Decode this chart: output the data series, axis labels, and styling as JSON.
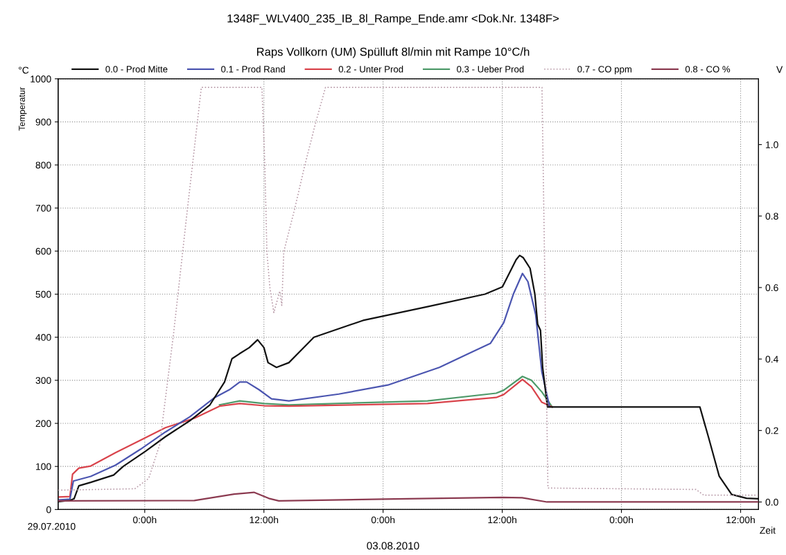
{
  "chart_data": {
    "type": "line",
    "title": "1348F_WLV400_235_IB_8l_Rampe_Ende.amr <Dok.Nr. 1348F>",
    "subtitle": "Raps Vollkorn (UM) Spülluft 8l/min mit Rampe 10°C/h",
    "ylabel": "Temperatur",
    "y2label": "V",
    "xlabel": "Zeit",
    "annotations": [
      "°C",
      "29.07.2010",
      "03.08.2010"
    ],
    "xlim": [
      "2010-07-29T15:17",
      "2010-08-01T13:48"
    ],
    "xticks": [
      {
        "value": "2010-07-30T00:00",
        "label": "0:00h"
      },
      {
        "value": "2010-07-30T12:00",
        "label": "12:00h"
      },
      {
        "value": "2010-07-31T00:00",
        "label": "0:00h"
      },
      {
        "value": "2010-07-31T12:00",
        "label": "12:00h"
      },
      {
        "value": "2010-08-01T00:00",
        "label": "0:00h"
      },
      {
        "value": "2010-08-01T12:00",
        "label": "12:00h"
      }
    ],
    "ylim": [
      0,
      1000
    ],
    "yticks": [
      0,
      100,
      200,
      300,
      400,
      500,
      600,
      700,
      800,
      900,
      1000
    ],
    "y2lim": [
      -0.021,
      1.184
    ],
    "y2ticks": [
      {
        "value": 0,
        "label": "0.0"
      },
      {
        "value": 0.2,
        "label": "0.2"
      },
      {
        "value": 0.4,
        "label": "0.4"
      },
      {
        "value": 0.6,
        "label": "0.6"
      },
      {
        "value": 0.8,
        "label": "0.8"
      },
      {
        "value": 1.0,
        "label": "1.0"
      }
    ],
    "grid": true,
    "legend": "top",
    "line_style": "solid",
    "marker": "none",
    "series": [
      {
        "name": "0.0 - Prod Mitte",
        "color": "#111111",
        "x": [
          "2010-07-29T15:17",
          "2010-07-29T16:28",
          "2010-07-29T16:53",
          "2010-07-29T17:22",
          "2010-07-29T18:34",
          "2010-07-29T20:52",
          "2010-07-29T21:50",
          "2010-07-30T00:04",
          "2010-07-30T02:05",
          "2010-07-30T04:32",
          "2010-07-30T06:34",
          "2010-07-30T08:02",
          "2010-07-30T08:47",
          "2010-07-30T09:34",
          "2010-07-30T10:32",
          "2010-07-30T11:22",
          "2010-07-30T12:00",
          "2010-07-30T12:25",
          "2010-07-30T13:16",
          "2010-07-30T14:31",
          "2010-07-30T17:02",
          "2010-07-30T21:59",
          "2010-07-31T04:28",
          "2010-07-31T10:16",
          "2010-07-31T12:01",
          "2010-07-31T13:24",
          "2010-07-31T13:45",
          "2010-07-31T14:06",
          "2010-07-31T14:48",
          "2010-07-31T15:17",
          "2010-07-31T15:34",
          "2010-07-31T15:51",
          "2010-07-31T16:04",
          "2010-07-31T16:33",
          "2010-08-01T07:54",
          "2010-08-01T08:48",
          "2010-08-01T09:51",
          "2010-08-01T11:06",
          "2010-08-01T12:36",
          "2010-08-01T13:46"
        ],
        "values": [
          18,
          21,
          25,
          55,
          63,
          80,
          100,
          135,
          169,
          206,
          243,
          296,
          350,
          362,
          376,
          394,
          376,
          341,
          330,
          341,
          400,
          439,
          471,
          500,
          517,
          580,
          590,
          585,
          560,
          500,
          430,
          416,
          330,
          238,
          238,
          165,
          77,
          35,
          26,
          25
        ]
      },
      {
        "name": "0.1 - Prod Rand",
        "color": "#4b55b0",
        "x": [
          "2010-07-29T15:17",
          "2010-07-29T16:28",
          "2010-07-29T16:49",
          "2010-07-29T18:34",
          "2010-07-29T21:04",
          "2010-07-29T23:35",
          "2010-07-30T02:05",
          "2010-07-30T04:32",
          "2010-07-30T07:03",
          "2010-07-30T08:31",
          "2010-07-30T09:34",
          "2010-07-30T10:16",
          "2010-07-30T11:31",
          "2010-07-30T12:46",
          "2010-07-30T14:31",
          "2010-07-30T19:32",
          "2010-07-31T00:29",
          "2010-07-31T05:40",
          "2010-07-31T10:49",
          "2010-07-31T12:09",
          "2010-07-31T13:07",
          "2010-07-31T14:02",
          "2010-07-31T14:35",
          "2010-07-31T15:22",
          "2010-07-31T15:59",
          "2010-07-31T16:45"
        ],
        "values": [
          22,
          24,
          66,
          77,
          103,
          140,
          180,
          215,
          260,
          278,
          296,
          296,
          278,
          257,
          252,
          268,
          289,
          330,
          386,
          434,
          500,
          548,
          529,
          452,
          320,
          240
        ]
      },
      {
        "name": "0.2 - Unter Prod",
        "color": "#d9434b",
        "x": [
          "2010-07-29T15:17",
          "2010-07-29T16:28",
          "2010-07-29T16:44",
          "2010-07-29T17:22",
          "2010-07-29T18:34",
          "2010-07-29T21:04",
          "2010-07-29T23:35",
          "2010-07-30T02:05",
          "2010-07-30T05:01",
          "2010-07-30T07:32",
          "2010-07-30T09:34",
          "2010-07-30T12:00",
          "2010-07-30T14:31",
          "2010-07-31T04:28",
          "2010-07-31T11:23",
          "2010-07-31T12:09",
          "2010-07-31T14:02",
          "2010-07-31T14:56",
          "2010-07-31T15:59",
          "2010-07-31T17:02"
        ],
        "values": [
          29,
          30,
          82,
          96,
          101,
          132,
          161,
          190,
          212,
          240,
          246,
          241,
          240,
          246,
          260,
          267,
          302,
          285,
          249,
          238
        ]
      },
      {
        "name": "0.3 - Ueber Prod",
        "color": "#4e9a6a",
        "x": [
          "2010-07-30T07:32",
          "2010-07-30T09:34",
          "2010-07-30T12:00",
          "2010-07-30T14:31",
          "2010-07-31T04:28",
          "2010-07-31T11:23",
          "2010-07-31T12:09",
          "2010-07-31T14:02",
          "2010-07-31T14:56",
          "2010-07-31T15:59",
          "2010-07-31T17:02"
        ],
        "values": [
          243,
          252,
          246,
          243,
          252,
          270,
          277,
          309,
          300,
          273,
          238
        ]
      },
      {
        "name": "0.7 - CO ppm",
        "color": "#b89aa8",
        "axis": "y2",
        "line_style": "dotted",
        "x": [
          "2010-07-29T15:17",
          "2010-07-29T23:00",
          "2010-07-30T00:24",
          "2010-07-30T01:30",
          "2010-07-30T02:54",
          "2010-07-30T04:18",
          "2010-07-30T05:42",
          "2010-07-30T11:48",
          "2010-07-30T12:06",
          "2010-07-30T12:18",
          "2010-07-30T12:36",
          "2010-07-30T13:00",
          "2010-07-30T13:36",
          "2010-07-30T13:48",
          "2010-07-30T14:00",
          "2010-07-30T15:06",
          "2010-07-30T16:06",
          "2010-07-30T17:12",
          "2010-07-30T18:12",
          "2010-07-31T16:00",
          "2010-07-31T16:18",
          "2010-07-31T16:36",
          "2010-08-01T07:30",
          "2010-08-01T08:18",
          "2010-08-01T13:46"
        ],
        "values": [
          0.033,
          0.037,
          0.066,
          0.16,
          0.47,
          0.82,
          1.16,
          1.16,
          0.94,
          0.7,
          0.6,
          0.53,
          0.59,
          0.55,
          0.7,
          0.82,
          0.94,
          1.06,
          1.16,
          1.16,
          0.6,
          0.039,
          0.035,
          0.019,
          0.019
        ]
      },
      {
        "name": "0.8 - CO %",
        "color": "#8b3a50",
        "axis": "y2",
        "x": [
          "2010-07-29T15:17",
          "2010-07-30T05:00",
          "2010-07-30T09:00",
          "2010-07-30T11:00",
          "2010-07-30T12:30",
          "2010-07-30T13:30",
          "2010-07-31T00:00",
          "2010-07-31T12:00",
          "2010-07-31T14:00",
          "2010-07-31T16:30",
          "2010-08-01T13:46"
        ],
        "values": [
          0.003,
          0.004,
          0.022,
          0.027,
          0.01,
          0.003,
          0.008,
          0.013,
          0.012,
          0.0,
          0.0
        ]
      }
    ]
  }
}
